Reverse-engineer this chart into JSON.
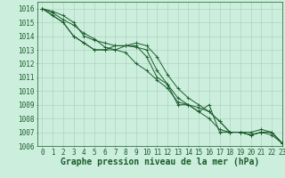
{
  "title": "Graphe pression niveau de la mer (hPa)",
  "background_color": "#cceedd",
  "grid_color": "#aaccbb",
  "line_color": "#1a5c2a",
  "xlim": [
    -0.5,
    23
  ],
  "ylim": [
    1006,
    1016.5
  ],
  "yticks": [
    1006,
    1007,
    1008,
    1009,
    1010,
    1011,
    1012,
    1013,
    1014,
    1015,
    1016
  ],
  "xticks": [
    0,
    1,
    2,
    3,
    4,
    5,
    6,
    7,
    8,
    9,
    10,
    11,
    12,
    13,
    14,
    15,
    16,
    17,
    18,
    19,
    20,
    21,
    22,
    23
  ],
  "series": [
    [
      1016.0,
      1015.8,
      1015.5,
      1015.0,
      1014.0,
      1013.7,
      1013.5,
      1013.3,
      1013.3,
      1013.3,
      1012.5,
      1011.0,
      1010.5,
      1009.0,
      1009.0,
      1008.5,
      1009.0,
      1007.0,
      1007.0,
      1007.0,
      1006.8,
      1007.0,
      1007.0,
      1006.2
    ],
    [
      1016.0,
      1015.7,
      1015.2,
      1014.8,
      1014.2,
      1013.8,
      1013.2,
      1013.0,
      1012.8,
      1012.0,
      1011.5,
      1010.8,
      1010.2,
      1009.2,
      1009.0,
      1008.5,
      1008.0,
      1007.2,
      1007.0,
      1007.0,
      1006.8,
      1007.0,
      1006.8,
      1006.2
    ],
    [
      1016.0,
      1015.5,
      1015.0,
      1014.0,
      1013.5,
      1013.0,
      1013.0,
      1013.3,
      1013.3,
      1013.5,
      1013.3,
      1012.5,
      1011.2,
      1010.2,
      1009.5,
      1009.0,
      1008.5,
      1007.8,
      1007.0,
      1007.0,
      1007.0,
      1007.2,
      1007.0,
      1006.2
    ],
    [
      1016.0,
      1015.5,
      1015.0,
      1014.0,
      1013.5,
      1013.0,
      1013.0,
      1013.0,
      1013.3,
      1013.2,
      1013.0,
      1011.5,
      1010.5,
      1009.5,
      1009.0,
      1008.8,
      1008.5,
      1007.8,
      1007.0,
      1007.0,
      1006.8,
      1007.0,
      1007.0,
      1006.2
    ]
  ],
  "title_fontsize": 7,
  "tick_fontsize": 5.5,
  "tick_color": "#1a5c2a",
  "line_width": 0.7,
  "marker_size": 2.5
}
